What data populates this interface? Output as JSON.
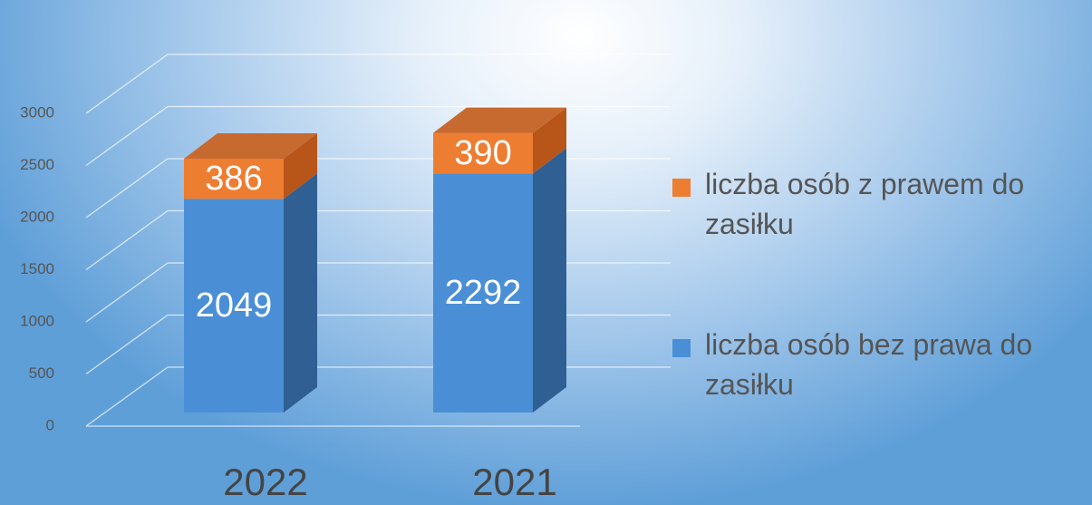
{
  "chart_data": {
    "type": "bar3d_stacked",
    "categories": [
      "2022",
      "2021"
    ],
    "series": [
      {
        "name": "liczba osób bez prawa do zasiłku",
        "color": "#4a8fd6",
        "values": [
          2049,
          2292
        ]
      },
      {
        "name": "liczba osób z prawem do zasiłku",
        "color": "#ed7d31",
        "values": [
          386,
          390
        ]
      }
    ],
    "ylim": [
      0,
      3000
    ],
    "yticks": [
      0,
      500,
      1000,
      1500,
      2000,
      2500,
      3000
    ],
    "grid": true,
    "legend": "right"
  }
}
